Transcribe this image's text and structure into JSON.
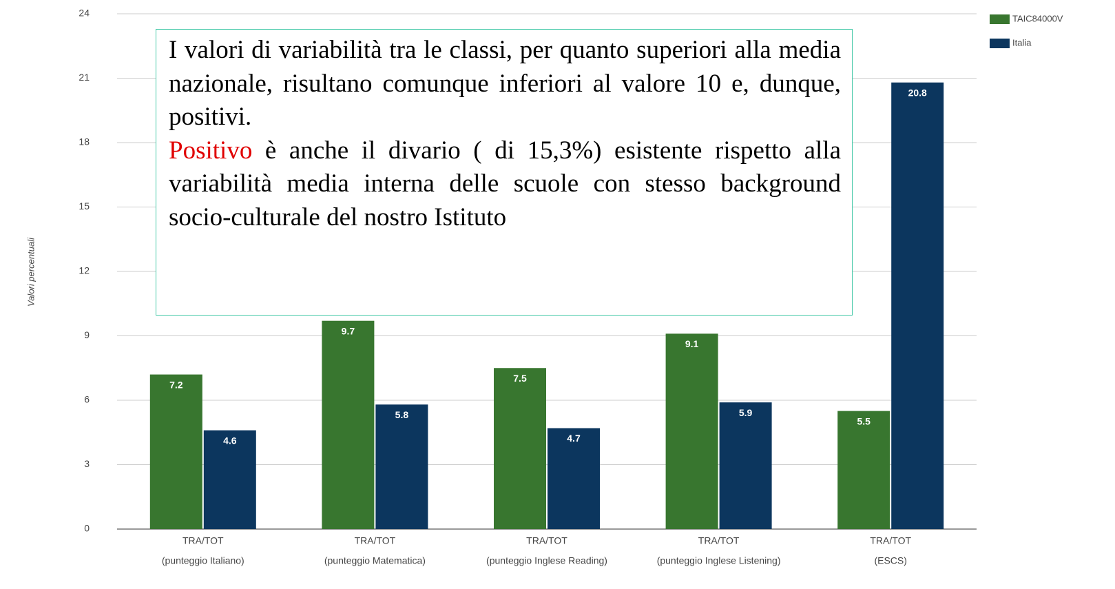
{
  "chart_data": {
    "type": "bar",
    "y_label": "Valori percentuali",
    "categories": [
      [
        "TRA/TOT",
        "(punteggio Italiano)"
      ],
      [
        "TRA/TOT",
        "(punteggio Matematica)"
      ],
      [
        "TRA/TOT",
        "(punteggio Inglese Reading)"
      ],
      [
        "TRA/TOT",
        "(punteggio Inglese Listening)"
      ],
      [
        "TRA/TOT",
        "(ESCS)"
      ]
    ],
    "series": [
      {
        "name": "TAIC84000V",
        "color": "#38762f",
        "values": [
          7.2,
          9.7,
          7.5,
          9.1,
          5.5
        ]
      },
      {
        "name": "Italia",
        "color": "#0c365e",
        "values": [
          4.6,
          5.8,
          4.7,
          5.9,
          20.8
        ]
      }
    ],
    "ylim": [
      0,
      24
    ],
    "yticks": [
      0,
      3,
      6,
      9,
      12,
      15,
      18,
      21,
      24
    ],
    "grid": true,
    "legend": "top-right",
    "annotation": [
      "I valori di variabilità tra le classi, per quanto superiori alla media nazionale, risultano comunque inferiori al valore 10 e, dunque, positivi.",
      "Positivo",
      "è anche il divario ( di  15,3%) esistente rispetto alla variabilità media interna delle scuole con stesso background socio-culturale del nostro Istituto"
    ]
  }
}
